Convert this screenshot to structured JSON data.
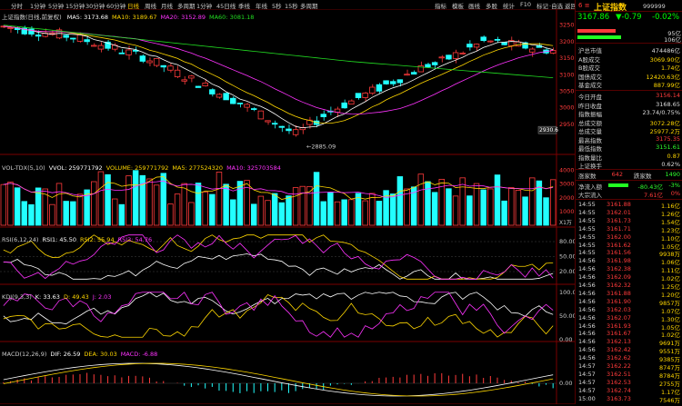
{
  "toolbar": {
    "tabs": [
      "分时",
      "1分钟",
      "5分钟",
      "15分钟",
      "30分钟",
      "60分钟",
      "日线",
      "周线",
      "月线",
      "多周期",
      "1分钟",
      "45日线",
      "季线",
      "年线",
      "5秒",
      "15秒",
      "多周期"
    ],
    "active_index": 6,
    "right_menu": [
      "指标",
      "模板",
      "画线",
      "多股",
      "统计",
      "F10",
      "标记",
      "·自选",
      "返回"
    ]
  },
  "kline": {
    "title": "上证指数(日线,前复权)",
    "ma_legend": [
      {
        "label": "MA5: 3173.68",
        "color": "#ffffff"
      },
      {
        "label": "MA10: 3189.67",
        "color": "#ffd700"
      },
      {
        "label": "MA20: 3152.89",
        "color": "#ff33ff"
      },
      {
        "label": "MA60: 3081.18",
        "color": "#22dd22"
      }
    ],
    "yticks": [
      "3250",
      "3200",
      "3150",
      "3100",
      "3050",
      "3000",
      "2950"
    ],
    "low_label": "2885.09",
    "current_tag": "2930.6"
  },
  "volume": {
    "legend": [
      {
        "label": "VOL-TDX(5,10)",
        "color": "#cccccc"
      },
      {
        "label": "VVOL: 259771792",
        "color": "#ffffff"
      },
      {
        "label": "VOLUME: 259771792",
        "color": "#ffd700"
      },
      {
        "label": "MA5: 277524320",
        "color": "#ffd700"
      },
      {
        "label": "MA10: 325703584",
        "color": "#ff33ff"
      }
    ],
    "yticks": [
      "40000",
      "30000",
      "20000",
      "10000"
    ],
    "unit": "X1万"
  },
  "rsi": {
    "legend": [
      {
        "label": "RSI(6,12,24)",
        "color": "#cccccc"
      },
      {
        "label": "RSI1: 45.50",
        "color": "#ffffff"
      },
      {
        "label": "RSI2: 55.94",
        "color": "#ffd700"
      },
      {
        "label": "RSI3: 54.76",
        "color": "#ff33ff"
      }
    ],
    "yticks": [
      "80.00",
      "50.00",
      "20.00"
    ]
  },
  "kdj": {
    "legend": [
      {
        "label": "KDJ(9,3,3)",
        "color": "#cccccc"
      },
      {
        "label": "K: 33.63",
        "color": "#ffffff"
      },
      {
        "label": "D: 49.43",
        "color": "#ffd700"
      },
      {
        "label": "J: 2.03",
        "color": "#ff33ff"
      }
    ],
    "yticks": [
      "100.00",
      "50.00",
      "0.00"
    ]
  },
  "macd": {
    "legend": [
      {
        "label": "MACD(12,26,9)",
        "color": "#cccccc"
      },
      {
        "label": "DIF: 26.59",
        "color": "#ffffff"
      },
      {
        "label": "DEA: 30.03",
        "color": "#ffd700"
      },
      {
        "label": "MACD: -6.88",
        "color": "#ff33ff"
      }
    ],
    "yticks": [
      "0.00"
    ]
  },
  "info": {
    "num": "6",
    "eq": "≡",
    "name": "上证指数",
    "code": "999999",
    "price": "3167.86",
    "change": "▼-0.79",
    "pct": "-0.02%",
    "red_bar_value": "95亿",
    "green_bar_value": "106亿",
    "red_bar_ratio": 0.47,
    "green_bar_ratio": 0.53,
    "stats1": [
      {
        "label": "沪总市值",
        "value": "474486亿",
        "color": "white"
      },
      {
        "label": "A股成交",
        "value": "3069.90亿",
        "color": "yellow"
      },
      {
        "label": "B股成交",
        "value": "1.74亿",
        "color": "yellow"
      },
      {
        "label": "国债成交",
        "value": "12420.63亿",
        "color": "yellow"
      },
      {
        "label": "基金成交",
        "value": "887.99亿",
        "color": "yellow"
      }
    ],
    "stats2": [
      {
        "label": "今日开盘",
        "value": "3156.14",
        "color": "red"
      },
      {
        "label": "昨日收盘",
        "value": "3168.65",
        "color": "white"
      },
      {
        "label": "指数振幅",
        "value": "23.74/0.75%",
        "color": "white"
      },
      {
        "label": "总成交额",
        "value": "3072.28亿",
        "color": "yellow"
      },
      {
        "label": "总成交量",
        "value": "25977.2万",
        "color": "yellow"
      },
      {
        "label": "最高指数",
        "value": "3175.35",
        "color": "red"
      },
      {
        "label": "最低指数",
        "value": "3151.61",
        "color": "green"
      },
      {
        "label": "指数量比",
        "value": "0.87",
        "color": "yellow"
      },
      {
        "label": "上证换手",
        "value": "0.62%",
        "color": "white"
      }
    ],
    "updown": {
      "label1": "涨家数",
      "v1": "642",
      "label2": "跌家数",
      "v2": "1490"
    },
    "flow": [
      {
        "label": "净流入额",
        "value": "-80.43亿",
        "pct": "-3%",
        "color": "green",
        "bar_ratio": 0.55
      },
      {
        "label": "大宗流入",
        "value": "7.61亿",
        "pct": "0%",
        "color": "red",
        "bar_ratio": 0.0
      }
    ],
    "ticks": [
      {
        "t": "14:55",
        "p": "3161.88",
        "v": "1.16亿",
        "c": "red"
      },
      {
        "t": "14:55",
        "p": "3162.01",
        "v": "1.26亿",
        "c": "red"
      },
      {
        "t": "14:55",
        "p": "3161.73",
        "v": "1.54亿",
        "c": "red"
      },
      {
        "t": "14:55",
        "p": "3161.71",
        "v": "1.23亿",
        "c": "red"
      },
      {
        "t": "14:55",
        "p": "3162.00",
        "v": "1.10亿",
        "c": "red"
      },
      {
        "t": "14:55",
        "p": "3161.62",
        "v": "1.05亿",
        "c": "red"
      },
      {
        "t": "14:55",
        "p": "3161.56",
        "v": "9938万",
        "c": "red"
      },
      {
        "t": "14:56",
        "p": "3161.98",
        "v": "1.06亿",
        "c": "red"
      },
      {
        "t": "14:56",
        "p": "3162.38",
        "v": "1.11亿",
        "c": "red"
      },
      {
        "t": "14:56",
        "p": "3162.09",
        "v": "1.02亿",
        "c": "red"
      },
      {
        "t": "14:56",
        "p": "3162.32",
        "v": "1.25亿",
        "c": "red"
      },
      {
        "t": "14:56",
        "p": "3161.88",
        "v": "1.20亿",
        "c": "red"
      },
      {
        "t": "14:56",
        "p": "3161.90",
        "v": "9857万",
        "c": "red"
      },
      {
        "t": "14:56",
        "p": "3162.03",
        "v": "1.07亿",
        "c": "red"
      },
      {
        "t": "14:56",
        "p": "3162.07",
        "v": "1.30亿",
        "c": "red"
      },
      {
        "t": "14:56",
        "p": "3161.93",
        "v": "1.05亿",
        "c": "red"
      },
      {
        "t": "14:56",
        "p": "3161.67",
        "v": "1.02亿",
        "c": "red"
      },
      {
        "t": "14:56",
        "p": "3162.13",
        "v": "9691万",
        "c": "red"
      },
      {
        "t": "14:56",
        "p": "3162.42",
        "v": "9551万",
        "c": "red"
      },
      {
        "t": "14:56",
        "p": "3162.62",
        "v": "9385万",
        "c": "red"
      },
      {
        "t": "14:57",
        "p": "3162.22",
        "v": "8747万",
        "c": "red"
      },
      {
        "t": "14:57",
        "p": "3162.51",
        "v": "8784万",
        "c": "red"
      },
      {
        "t": "14:57",
        "p": "3162.53",
        "v": "2755万",
        "c": "red"
      },
      {
        "t": "14:57",
        "p": "3162.74",
        "v": "1.17亿",
        "c": "red"
      },
      {
        "t": "15:00",
        "p": "3163.73",
        "v": "7546万",
        "c": "red"
      }
    ]
  },
  "colors": {
    "up": "#ff3b3b",
    "down": "#22ffff",
    "ma5": "#ffffff",
    "ma10": "#ffd700",
    "ma20": "#ff33ff",
    "ma60": "#22dd22",
    "grid": "#5a0000"
  }
}
